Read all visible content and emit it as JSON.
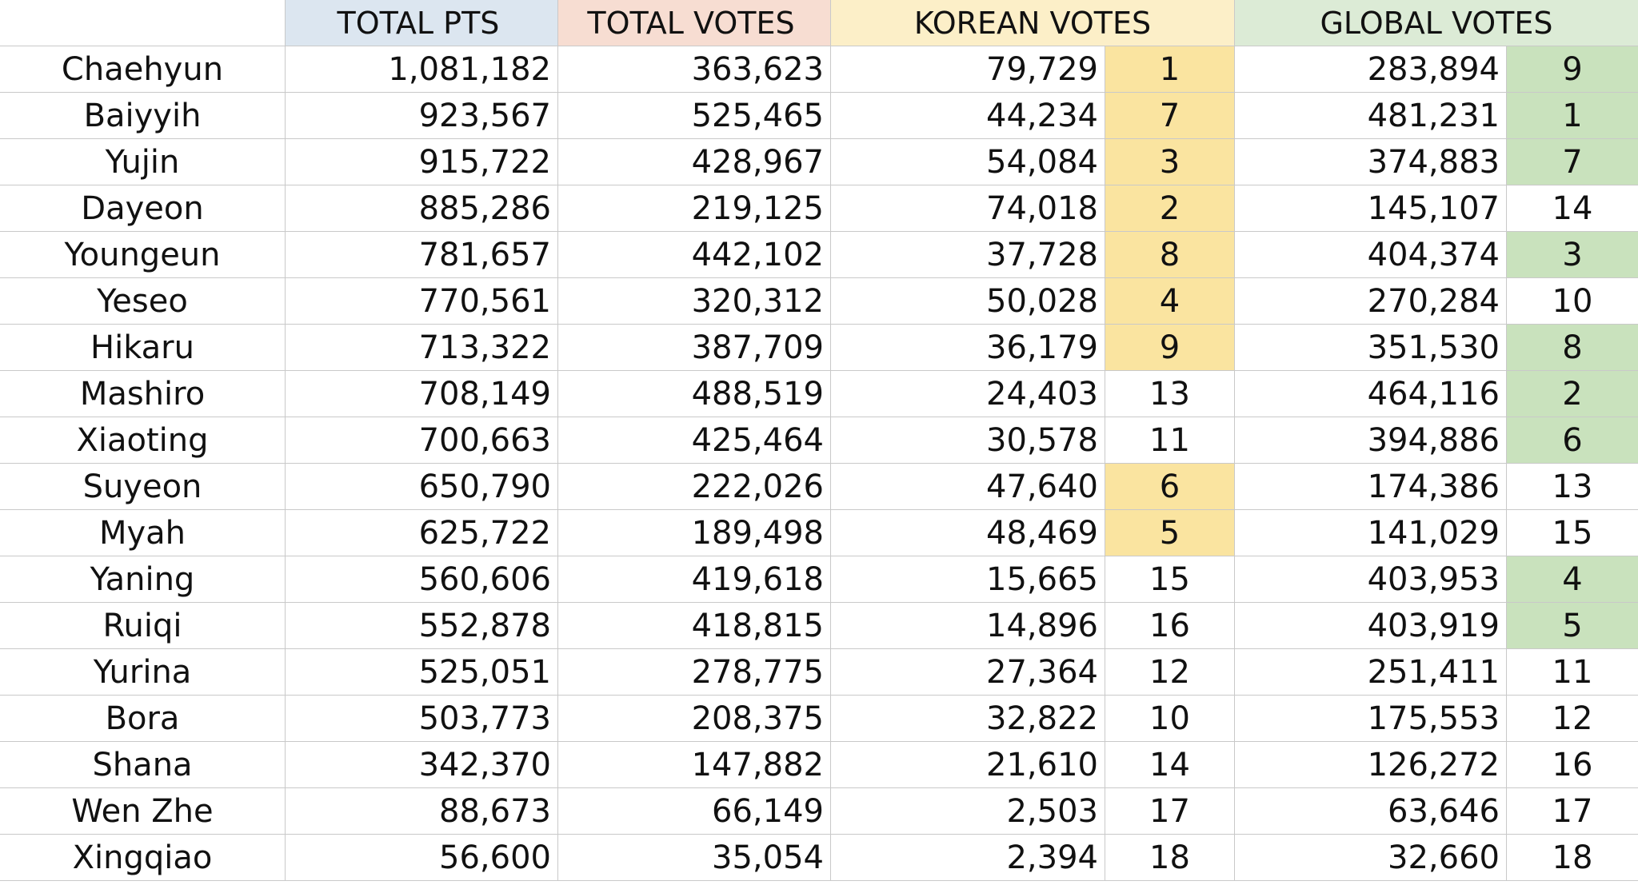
{
  "headers": [
    "",
    "TOTAL PTS",
    "TOTAL VOTES",
    "KOREAN VOTES",
    "GLOBAL VOTES"
  ],
  "colors": {
    "header_total_pts": "#dce6f0",
    "header_total_votes": "#f7ddd2",
    "header_korean_votes": "#fcefc8",
    "header_global_votes": "#dcebd6",
    "korean_rank_highlight": "#fae4a0",
    "global_rank_highlight": "#c9e2bd",
    "gridline": "#c9c9c9"
  },
  "rows": [
    {
      "name": "Chaehyun",
      "total_pts": "1,081,182",
      "total_votes": "363,623",
      "korean_votes": "79,729",
      "korean_rank": "1",
      "global_votes": "283,894",
      "global_rank": "9",
      "korean_top9": true,
      "global_top9": true
    },
    {
      "name": "Baiyyih",
      "total_pts": "923,567",
      "total_votes": "525,465",
      "korean_votes": "44,234",
      "korean_rank": "7",
      "global_votes": "481,231",
      "global_rank": "1",
      "korean_top9": true,
      "global_top9": true
    },
    {
      "name": "Yujin",
      "total_pts": "915,722",
      "total_votes": "428,967",
      "korean_votes": "54,084",
      "korean_rank": "3",
      "global_votes": "374,883",
      "global_rank": "7",
      "korean_top9": true,
      "global_top9": true
    },
    {
      "name": "Dayeon",
      "total_pts": "885,286",
      "total_votes": "219,125",
      "korean_votes": "74,018",
      "korean_rank": "2",
      "global_votes": "145,107",
      "global_rank": "14",
      "korean_top9": true,
      "global_top9": false
    },
    {
      "name": "Youngeun",
      "total_pts": "781,657",
      "total_votes": "442,102",
      "korean_votes": "37,728",
      "korean_rank": "8",
      "global_votes": "404,374",
      "global_rank": "3",
      "korean_top9": true,
      "global_top9": true
    },
    {
      "name": "Yeseo",
      "total_pts": "770,561",
      "total_votes": "320,312",
      "korean_votes": "50,028",
      "korean_rank": "4",
      "global_votes": "270,284",
      "global_rank": "10",
      "korean_top9": true,
      "global_top9": false
    },
    {
      "name": "Hikaru",
      "total_pts": "713,322",
      "total_votes": "387,709",
      "korean_votes": "36,179",
      "korean_rank": "9",
      "global_votes": "351,530",
      "global_rank": "8",
      "korean_top9": true,
      "global_top9": true
    },
    {
      "name": "Mashiro",
      "total_pts": "708,149",
      "total_votes": "488,519",
      "korean_votes": "24,403",
      "korean_rank": "13",
      "global_votes": "464,116",
      "global_rank": "2",
      "korean_top9": false,
      "global_top9": true
    },
    {
      "name": "Xiaoting",
      "total_pts": "700,663",
      "total_votes": "425,464",
      "korean_votes": "30,578",
      "korean_rank": "11",
      "global_votes": "394,886",
      "global_rank": "6",
      "korean_top9": false,
      "global_top9": true
    },
    {
      "name": "Suyeon",
      "total_pts": "650,790",
      "total_votes": "222,026",
      "korean_votes": "47,640",
      "korean_rank": "6",
      "global_votes": "174,386",
      "global_rank": "13",
      "korean_top9": true,
      "global_top9": false
    },
    {
      "name": "Myah",
      "total_pts": "625,722",
      "total_votes": "189,498",
      "korean_votes": "48,469",
      "korean_rank": "5",
      "global_votes": "141,029",
      "global_rank": "15",
      "korean_top9": true,
      "global_top9": false
    },
    {
      "name": "Yaning",
      "total_pts": "560,606",
      "total_votes": "419,618",
      "korean_votes": "15,665",
      "korean_rank": "15",
      "global_votes": "403,953",
      "global_rank": "4",
      "korean_top9": false,
      "global_top9": true
    },
    {
      "name": "Ruiqi",
      "total_pts": "552,878",
      "total_votes": "418,815",
      "korean_votes": "14,896",
      "korean_rank": "16",
      "global_votes": "403,919",
      "global_rank": "5",
      "korean_top9": false,
      "global_top9": true
    },
    {
      "name": "Yurina",
      "total_pts": "525,051",
      "total_votes": "278,775",
      "korean_votes": "27,364",
      "korean_rank": "12",
      "global_votes": "251,411",
      "global_rank": "11",
      "korean_top9": false,
      "global_top9": false
    },
    {
      "name": "Bora",
      "total_pts": "503,773",
      "total_votes": "208,375",
      "korean_votes": "32,822",
      "korean_rank": "10",
      "global_votes": "175,553",
      "global_rank": "12",
      "korean_top9": false,
      "global_top9": false
    },
    {
      "name": "Shana",
      "total_pts": "342,370",
      "total_votes": "147,882",
      "korean_votes": "21,610",
      "korean_rank": "14",
      "global_votes": "126,272",
      "global_rank": "16",
      "korean_top9": false,
      "global_top9": false
    },
    {
      "name": "Wen Zhe",
      "total_pts": "88,673",
      "total_votes": "66,149",
      "korean_votes": "2,503",
      "korean_rank": "17",
      "global_votes": "63,646",
      "global_rank": "17",
      "korean_top9": false,
      "global_top9": false
    },
    {
      "name": "Xingqiao",
      "total_pts": "56,600",
      "total_votes": "35,054",
      "korean_votes": "2,394",
      "korean_rank": "18",
      "global_votes": "32,660",
      "global_rank": "18",
      "korean_top9": false,
      "global_top9": false
    }
  ]
}
